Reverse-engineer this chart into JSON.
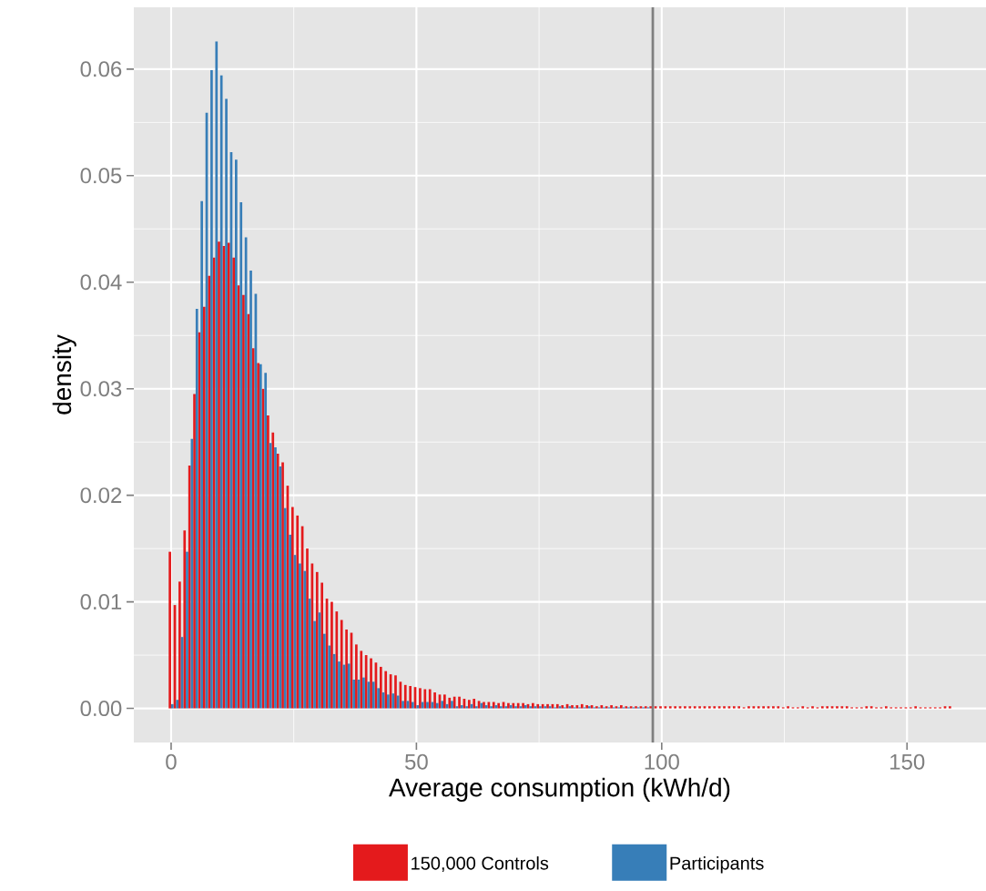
{
  "chart_data": {
    "type": "histogram",
    "xlabel": "Average consumption (kWh/d)",
    "ylabel": "density",
    "bins": [
      -0.5,
      0.5,
      1.5,
      2.5,
      3.5,
      4.5,
      5.5,
      6.5,
      7.5,
      8.5,
      9.5,
      10.5,
      11.5,
      12.5,
      13.5,
      14.5,
      15.5,
      16.5,
      17.5,
      18.5,
      19.5,
      20.5,
      21.5,
      22.5,
      23.5,
      24.5,
      25.5,
      26.5,
      27.5,
      28.5,
      29.5,
      30.5,
      31.5,
      32.5,
      33.5,
      34.5,
      35.5,
      36.5,
      37.5,
      38.5,
      39.5,
      40.5,
      41.5,
      42.5,
      43.5,
      44.5,
      45.5,
      46.5,
      47.5,
      48.5,
      49.5,
      50.5,
      51.5,
      52.5,
      53.5,
      54.5,
      55.5,
      56.5,
      57.5,
      58.5,
      59.5,
      60.5,
      61.5,
      62.5,
      63.5,
      64.5,
      65.5,
      66.5,
      67.5,
      68.5,
      69.5,
      70.5,
      71.5,
      72.5,
      73.5,
      74.5,
      75.5,
      76.5,
      77.5,
      78.5,
      79.5,
      80.5,
      81.5,
      82.5,
      83.5,
      84.5,
      85.5,
      86.5,
      87.5,
      88.5,
      89.5,
      90.5,
      91.5,
      92.5,
      93.5,
      94.5,
      95.5,
      96.5,
      97.5,
      98.5,
      99.5,
      100.5,
      101.5,
      102.5,
      103.5,
      104.5,
      105.5,
      106.5,
      107.5,
      108.5,
      109.5,
      110.5,
      111.5,
      112.5,
      113.5,
      114.5,
      115.5,
      116.5,
      117.5,
      118.5,
      119.5,
      120.5,
      121.5,
      122.5,
      123.5,
      124.5,
      125.5,
      126.5,
      127.5,
      128.5,
      129.5,
      130.5,
      131.5,
      132.5,
      133.5,
      134.5,
      135.5,
      136.5,
      137.5,
      138.5,
      139.5,
      140.5,
      141.5,
      142.5,
      143.5,
      144.5,
      145.5,
      146.5,
      147.5,
      148.5,
      149.5,
      150.5,
      151.5,
      152.5,
      153.5,
      154.5,
      155.5,
      156.5,
      157.5,
      158.5,
      159.5
    ],
    "series": [
      {
        "name": "150,000 Controls",
        "color": "#e41a1c",
        "values": [
          0.0147,
          0.0097,
          0.0119,
          0.0167,
          0.0228,
          0.0295,
          0.0353,
          0.0377,
          0.0406,
          0.0423,
          0.0438,
          0.0434,
          0.0437,
          0.0423,
          0.0397,
          0.0388,
          0.037,
          0.0338,
          0.0324,
          0.03,
          0.0275,
          0.0259,
          0.0239,
          0.0231,
          0.0209,
          0.0189,
          0.0181,
          0.0171,
          0.015,
          0.0136,
          0.0128,
          0.0118,
          0.0103,
          0.01,
          0.0091,
          0.0083,
          0.0074,
          0.0071,
          0.006,
          0.0054,
          0.005,
          0.0047,
          0.0043,
          0.0039,
          0.0035,
          0.0032,
          0.0031,
          0.0025,
          0.0022,
          0.0021,
          0.002,
          0.0019,
          0.0018,
          0.0018,
          0.0015,
          0.0013,
          0.0013,
          0.001,
          0.0011,
          0.0011,
          0.0009,
          0.0008,
          0.0009,
          0.0007,
          0.0006,
          0.0006,
          0.0006,
          0.0005,
          0.0006,
          0.0005,
          0.0005,
          0.0005,
          0.0005,
          0.0004,
          0.0005,
          0.0004,
          0.0004,
          0.0004,
          0.0004,
          0.0004,
          0.0003,
          0.0004,
          0.0003,
          0.0003,
          0.0004,
          0.0003,
          0.0003,
          0.0002,
          0.0003,
          0.0002,
          0.0003,
          0.0002,
          0.0003,
          0.0002,
          0.0002,
          0.0002,
          0.0002,
          0.0002,
          0.0002,
          0.0002,
          0.0002,
          0.0002,
          0.0002,
          0.0002,
          0.0002,
          0.0002,
          0.0002,
          0.0002,
          0.0002,
          0.0002,
          0.0002,
          0.0002,
          0.0002,
          0.0002,
          0.0002,
          0.0002,
          0.0002,
          0.0001,
          0.0002,
          0.0002,
          0.0002,
          0.0002,
          0.0002,
          0.0002,
          0.0002,
          0.0001,
          0.0002,
          0.0001,
          0.0001,
          0.0002,
          0.0001,
          0.0002,
          0.0001,
          0.0002,
          0.0002,
          0.0002,
          0.0002,
          0.0002,
          0.0002,
          0.0001,
          0.0001,
          0.0001,
          0.0002,
          0.0002,
          0.0001,
          0.0001,
          0.0002,
          0.0001,
          0.0001,
          0.0001,
          0.0001,
          0.0001,
          0.0002,
          0.0001,
          0.0001,
          0.0001,
          0.0001,
          0.0001,
          0.0002,
          0.0002
        ]
      },
      {
        "name": "Participants",
        "color": "#377eb8",
        "values": [
          0.0004,
          0.0008,
          0.0067,
          0.0147,
          0.0253,
          0.0375,
          0.0476,
          0.0559,
          0.0599,
          0.0626,
          0.0594,
          0.0572,
          0.0522,
          0.0515,
          0.0475,
          0.0442,
          0.0411,
          0.0389,
          0.0323,
          0.0315,
          0.0249,
          0.0245,
          0.0227,
          0.0188,
          0.0163,
          0.0144,
          0.0136,
          0.0129,
          0.0103,
          0.0082,
          0.009,
          0.007,
          0.0059,
          0.0051,
          0.0044,
          0.0041,
          0.0042,
          0.0027,
          0.0027,
          0.0029,
          0.0025,
          0.0025,
          0.0019,
          0.0015,
          0.0013,
          0.0014,
          0.0012,
          0.0007,
          0.0007,
          0.0006,
          0.0003,
          0.0006,
          0.0006,
          0.0006,
          0.0005,
          0.0007,
          0.0004,
          0.0007,
          0.0002,
          0.0003,
          0.0002,
          0.0004,
          0.0002,
          0.0005,
          0.0003,
          0.0002,
          0.0003,
          0.0002,
          0.0002,
          0.0003,
          0.0002,
          0.0002,
          0.0003,
          0.0002,
          0.0002,
          0.0002,
          0.0002,
          0.0002,
          0.0001,
          0.0002,
          0.0001,
          0.0002,
          0.0001,
          0.0001,
          0.0001,
          0.0002,
          0.0001,
          0.0001,
          0.0001,
          0.0001,
          0.0001,
          0.0001,
          0.0001,
          0.0001,
          0.0001,
          0.0001,
          0.0001,
          0.0001,
          0,
          0,
          0,
          0,
          0,
          0,
          0,
          0,
          0,
          0,
          0,
          0,
          0,
          0,
          0,
          0,
          0,
          0,
          0,
          0,
          0,
          0,
          0,
          0,
          0,
          0,
          0,
          0,
          0,
          0,
          0,
          0,
          0,
          0,
          0,
          0,
          0,
          0,
          0,
          0,
          0,
          0,
          0,
          0,
          0,
          0,
          0,
          0,
          0,
          0,
          0,
          0,
          0,
          0,
          0,
          0,
          0,
          0,
          0,
          0,
          0,
          0
        ]
      }
    ],
    "xlim": [
      -7.6,
      166.1
    ],
    "ylim": [
      -0.0032,
      0.0658
    ],
    "xticks": [
      0,
      50,
      100,
      150
    ],
    "yticks": [
      {
        "value": 0,
        "label": "0.00"
      },
      {
        "value": 0.01,
        "label": "0.01"
      },
      {
        "value": 0.02,
        "label": "0.02"
      },
      {
        "value": 0.03,
        "label": "0.03"
      },
      {
        "value": 0.04,
        "label": "0.04"
      },
      {
        "value": 0.05,
        "label": "0.05"
      },
      {
        "value": 0.06,
        "label": "0.06"
      }
    ],
    "ref_lines": [
      {
        "axis": "x",
        "value": 98.2,
        "color": "#7f7f7f"
      }
    ],
    "grid": true,
    "legend": "bottom"
  }
}
